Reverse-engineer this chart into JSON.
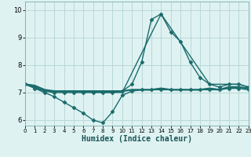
{
  "title": "",
  "xlabel": "Humidex (Indice chaleur)",
  "bg_color": "#dff2f2",
  "grid_color": "#b8d8d8",
  "line_color": "#1a6b6b",
  "xlim": [
    0,
    23
  ],
  "ylim": [
    5.8,
    10.3
  ],
  "yticks": [
    6,
    7,
    8,
    9,
    10
  ],
  "xticks": [
    0,
    1,
    2,
    3,
    4,
    5,
    6,
    7,
    8,
    9,
    10,
    11,
    12,
    13,
    14,
    15,
    16,
    17,
    18,
    19,
    20,
    21,
    22,
    23
  ],
  "lines": [
    {
      "x": [
        0,
        1,
        2,
        3,
        4,
        5,
        6,
        7,
        8,
        9,
        10,
        11,
        12,
        13,
        14,
        15,
        16,
        17,
        18,
        19,
        20,
        21,
        22,
        23
      ],
      "y": [
        7.3,
        7.15,
        7.0,
        6.85,
        6.65,
        6.45,
        6.25,
        6.0,
        5.9,
        6.3,
        6.9,
        7.05,
        7.1,
        7.1,
        7.1,
        7.1,
        7.1,
        7.1,
        7.1,
        7.1,
        7.1,
        7.15,
        7.15,
        7.1
      ],
      "marker": "D",
      "markersize": 2.5,
      "linewidth": 1.0
    },
    {
      "x": [
        0,
        1,
        2,
        3,
        4,
        5,
        6,
        7,
        8,
        9,
        10,
        11,
        12,
        13,
        14,
        15,
        16,
        17,
        18,
        19,
        20,
        21,
        22,
        23
      ],
      "y": [
        7.3,
        7.2,
        7.05,
        7.0,
        7.0,
        7.0,
        7.0,
        7.0,
        7.0,
        7.0,
        7.05,
        7.3,
        8.1,
        9.65,
        9.85,
        9.2,
        8.85,
        8.1,
        7.55,
        7.3,
        7.2,
        7.3,
        7.3,
        7.2
      ],
      "marker": "D",
      "markersize": 2.5,
      "linewidth": 1.0
    },
    {
      "x": [
        0,
        1,
        2,
        3,
        4,
        5,
        6,
        7,
        8,
        9,
        10,
        11,
        12,
        13,
        14,
        15,
        16,
        17,
        18,
        19,
        20,
        21,
        22,
        23
      ],
      "y": [
        7.3,
        7.25,
        7.1,
        7.05,
        7.05,
        7.05,
        7.05,
        7.05,
        7.05,
        7.05,
        7.05,
        7.1,
        7.1,
        7.1,
        7.15,
        7.1,
        7.1,
        7.1,
        7.1,
        7.15,
        7.1,
        7.2,
        7.2,
        7.15
      ],
      "marker": null,
      "markersize": 0,
      "linewidth": 1.6
    },
    {
      "x": [
        0,
        2,
        10,
        14,
        19,
        21,
        22,
        23
      ],
      "y": [
        7.3,
        7.05,
        7.0,
        9.85,
        7.3,
        7.3,
        7.3,
        7.2
      ],
      "marker": null,
      "markersize": 0,
      "linewidth": 1.0
    }
  ]
}
